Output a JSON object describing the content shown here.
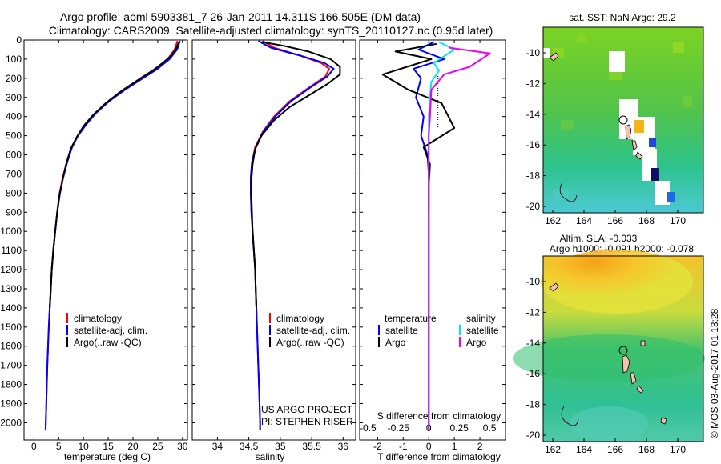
{
  "title": {
    "line1": "Argo profile: aoml 5903381_7 26-Jan-2011 14.311S 166.505E (DM data)",
    "line2": "Climatology: CARS2009. Satellite-adjusted climatology: synTS_20110127.nc (0.95d later)"
  },
  "side_label": "©IMOS 03-Aug-2017 01:13:28",
  "colors": {
    "clim": "#ff0000",
    "sat": "#0000ff",
    "argo": "#000000",
    "sat_s": "#00e5ee",
    "argo_s": "#ee00ee"
  },
  "chart_data": [
    {
      "type": "line",
      "name": "temperature",
      "xlabel": "temperature (deg C)",
      "xlim": [
        -2,
        31
      ],
      "xticks": [
        0,
        5,
        10,
        15,
        20,
        25,
        30
      ],
      "ylim": [
        0,
        2050
      ],
      "yticks": [
        0,
        100,
        200,
        300,
        400,
        500,
        600,
        700,
        800,
        900,
        1000,
        1100,
        1200,
        1300,
        1400,
        1500,
        1600,
        1700,
        1800,
        1900,
        2000
      ],
      "legend": [
        "climatology",
        "satellite-adj. clim.",
        "Argo(..raw -QC)"
      ],
      "series": [
        {
          "name": "climatology",
          "color": "#ff0000",
          "points": [
            [
              29.0,
              5
            ],
            [
              28.4,
              50
            ],
            [
              27.0,
              100
            ],
            [
              24.5,
              150
            ],
            [
              21.5,
              200
            ],
            [
              18.0,
              260
            ],
            [
              15.0,
              320
            ],
            [
              12.5,
              380
            ],
            [
              10.5,
              440
            ],
            [
              8.8,
              500
            ],
            [
              7.6,
              560
            ],
            [
              6.6,
              640
            ],
            [
              5.8,
              720
            ],
            [
              5.2,
              800
            ],
            [
              4.7,
              900
            ],
            [
              4.3,
              1000
            ],
            [
              3.9,
              1100
            ],
            [
              3.6,
              1200
            ],
            [
              3.4,
              1300
            ],
            [
              3.2,
              1400
            ],
            [
              3.0,
              1500
            ],
            [
              2.85,
              1600
            ],
            [
              2.7,
              1700
            ],
            [
              2.6,
              1800
            ],
            [
              2.5,
              1900
            ],
            [
              2.4,
              2000
            ],
            [
              2.35,
              2040
            ]
          ]
        },
        {
          "name": "satellite-adj. clim.",
          "color": "#0000ff",
          "points": [
            [
              29.5,
              5
            ],
            [
              28.9,
              50
            ],
            [
              27.4,
              100
            ],
            [
              25.0,
              150
            ],
            [
              22.0,
              200
            ],
            [
              18.4,
              260
            ],
            [
              15.2,
              320
            ],
            [
              12.6,
              380
            ],
            [
              10.6,
              440
            ],
            [
              8.9,
              500
            ],
            [
              7.7,
              560
            ],
            [
              6.7,
              640
            ],
            [
              5.9,
              720
            ],
            [
              5.2,
              800
            ],
            [
              4.7,
              900
            ],
            [
              4.3,
              1000
            ],
            [
              3.9,
              1100
            ],
            [
              3.6,
              1200
            ],
            [
              3.4,
              1300
            ],
            [
              3.2,
              1400
            ],
            [
              3.0,
              1500
            ],
            [
              2.85,
              1600
            ],
            [
              2.7,
              1700
            ],
            [
              2.6,
              1800
            ],
            [
              2.5,
              1900
            ],
            [
              2.4,
              2000
            ],
            [
              2.35,
              2040
            ]
          ]
        },
        {
          "name": "Argo(..raw -QC)",
          "color": "#000000",
          "points": [
            [
              29.3,
              10
            ],
            [
              28.8,
              40
            ],
            [
              27.8,
              80
            ],
            [
              26.0,
              120
            ],
            [
              24.0,
              160
            ],
            [
              21.0,
              210
            ],
            [
              17.5,
              270
            ],
            [
              14.5,
              330
            ],
            [
              12.0,
              390
            ],
            [
              10.0,
              450
            ],
            [
              8.6,
              510
            ],
            [
              7.4,
              570
            ],
            [
              6.5,
              650
            ],
            [
              5.8,
              730
            ],
            [
              5.2,
              810
            ],
            [
              4.7,
              900
            ],
            [
              4.3,
              1000
            ],
            [
              3.9,
              1100
            ],
            [
              3.6,
              1200
            ],
            [
              3.4,
              1300
            ],
            [
              3.2,
              1400
            ]
          ]
        }
      ]
    },
    {
      "type": "line",
      "name": "salinity",
      "xlabel": "salinity",
      "xlim": [
        33.6,
        36.2
      ],
      "xticks": [
        34,
        34.5,
        35,
        35.5,
        36
      ],
      "ylim": [
        0,
        2050
      ],
      "legend": [
        "climatology",
        "satellite-adj. clim.",
        "Argo(..raw -QC)"
      ],
      "credit": [
        "US ARGO PROJECT",
        "PI: STEPHEN RISER"
      ],
      "series": [
        {
          "name": "climatology",
          "color": "#ff0000",
          "points": [
            [
              34.72,
              5
            ],
            [
              34.9,
              40
            ],
            [
              35.3,
              80
            ],
            [
              35.65,
              120
            ],
            [
              35.78,
              150
            ],
            [
              35.72,
              190
            ],
            [
              35.45,
              250
            ],
            [
              35.15,
              320
            ],
            [
              34.9,
              400
            ],
            [
              34.72,
              480
            ],
            [
              34.6,
              560
            ],
            [
              34.55,
              640
            ],
            [
              34.53,
              720
            ],
            [
              34.53,
              800
            ],
            [
              34.54,
              900
            ],
            [
              34.56,
              1000
            ],
            [
              34.58,
              1100
            ],
            [
              34.6,
              1200
            ],
            [
              34.61,
              1300
            ],
            [
              34.62,
              1400
            ],
            [
              34.63,
              1500
            ],
            [
              34.64,
              1600
            ],
            [
              34.65,
              1700
            ],
            [
              34.66,
              1800
            ],
            [
              34.67,
              1900
            ],
            [
              34.68,
              2000
            ],
            [
              34.68,
              2040
            ]
          ]
        },
        {
          "name": "satellite-adj. clim.",
          "color": "#0000ff",
          "points": [
            [
              34.65,
              5
            ],
            [
              34.85,
              40
            ],
            [
              35.3,
              80
            ],
            [
              35.7,
              120
            ],
            [
              35.85,
              150
            ],
            [
              35.75,
              190
            ],
            [
              35.47,
              250
            ],
            [
              35.17,
              320
            ],
            [
              34.92,
              400
            ],
            [
              34.73,
              480
            ],
            [
              34.61,
              560
            ],
            [
              34.55,
              640
            ],
            [
              34.53,
              720
            ],
            [
              34.53,
              800
            ],
            [
              34.54,
              900
            ],
            [
              34.56,
              1000
            ],
            [
              34.58,
              1100
            ],
            [
              34.6,
              1200
            ],
            [
              34.61,
              1300
            ],
            [
              34.62,
              1400
            ],
            [
              34.63,
              1500
            ],
            [
              34.64,
              1600
            ],
            [
              34.65,
              1700
            ],
            [
              34.66,
              1800
            ],
            [
              34.67,
              1900
            ],
            [
              34.68,
              2000
            ],
            [
              34.68,
              2040
            ]
          ]
        },
        {
          "name": "Argo(..raw -QC)",
          "color": "#000000",
          "points": [
            [
              34.7,
              10
            ],
            [
              35.05,
              30
            ],
            [
              35.45,
              60
            ],
            [
              35.8,
              100
            ],
            [
              35.95,
              140
            ],
            [
              35.95,
              180
            ],
            [
              35.75,
              230
            ],
            [
              35.45,
              290
            ],
            [
              35.15,
              350
            ],
            [
              34.9,
              420
            ],
            [
              34.7,
              500
            ],
            [
              34.6,
              570
            ],
            [
              34.56,
              650
            ],
            [
              34.54,
              730
            ],
            [
              34.54,
              810
            ],
            [
              34.55,
              900
            ],
            [
              34.56,
              1000
            ],
            [
              34.58,
              1100
            ],
            [
              34.6,
              1200
            ],
            [
              34.61,
              1300
            ],
            [
              34.62,
              1400
            ]
          ]
        }
      ]
    },
    {
      "type": "line",
      "name": "difference",
      "xlabel": "T difference from climatology",
      "xlabel_top": "S difference from climatology",
      "xlim": [
        -2.7,
        3.0
      ],
      "xticks": [
        -2,
        -1,
        0,
        1,
        2
      ],
      "xticks_top": [
        "-0.5",
        "-0.25",
        "0",
        "0.25",
        "0.5"
      ],
      "ylim": [
        0,
        2050
      ],
      "legend_left": {
        "title": "temperature",
        "items": [
          "satellite",
          "Argo"
        ]
      },
      "legend_right": {
        "title": "salinity",
        "items": [
          "satellite",
          "Argo"
        ]
      },
      "series": [
        {
          "name": "temperature satellite",
          "color": "#0000ff",
          "points": [
            [
              0.2,
              10
            ],
            [
              -0.4,
              50
            ],
            [
              0.6,
              100
            ],
            [
              -0.6,
              150
            ],
            [
              -0.3,
              200
            ],
            [
              -0.5,
              300
            ],
            [
              -0.2,
              400
            ],
            [
              -0.3,
              500
            ],
            [
              -0.05,
              600
            ],
            [
              0,
              700
            ],
            [
              0,
              900
            ],
            [
              0,
              2040
            ]
          ]
        },
        {
          "name": "temperature Argo",
          "color": "#000000",
          "points": [
            [
              0.3,
              20
            ],
            [
              -1.3,
              60
            ],
            [
              0.1,
              100
            ],
            [
              -1.8,
              180
            ],
            [
              -0.8,
              260
            ],
            [
              0.5,
              330
            ],
            [
              1.0,
              460
            ],
            [
              -0.2,
              560
            ],
            [
              0.05,
              650
            ],
            [
              0,
              760
            ],
            [
              0,
              900
            ]
          ]
        },
        {
          "name": "salinity satellite",
          "color": "#00e5ee",
          "points": [
            [
              0.4,
              10
            ],
            [
              1.0,
              50
            ],
            [
              0.2,
              120
            ],
            [
              0.4,
              160
            ],
            [
              0.1,
              220
            ],
            [
              0.05,
              300
            ],
            [
              0,
              400
            ],
            [
              0,
              2040
            ]
          ]
        },
        {
          "name": "salinity Argo",
          "color": "#ee00ee",
          "points": [
            [
              0.8,
              40
            ],
            [
              2.4,
              70
            ],
            [
              1.6,
              140
            ],
            [
              0.6,
              180
            ],
            [
              0.1,
              260
            ],
            [
              0.05,
              400
            ],
            [
              0,
              500
            ],
            [
              0,
              2040
            ]
          ]
        }
      ]
    }
  ],
  "maps": [
    {
      "title": "sat. SST: NaN Argo: 29.2",
      "title2": "",
      "lon_ticks": [
        "162",
        "164",
        "166",
        "168",
        "170"
      ],
      "lat_ticks": [
        "-10",
        "-12",
        "-14",
        "-16",
        "-18",
        "-20"
      ]
    },
    {
      "title": "Altim. SLA: -0.033",
      "title2": "Argo h1000: -0.091 h2000: -0.078",
      "lon_ticks": [
        "162",
        "164",
        "166",
        "168",
        "170"
      ],
      "lat_ticks": [
        "-10",
        "-12",
        "-14",
        "-16",
        "-18",
        "-20"
      ]
    }
  ]
}
